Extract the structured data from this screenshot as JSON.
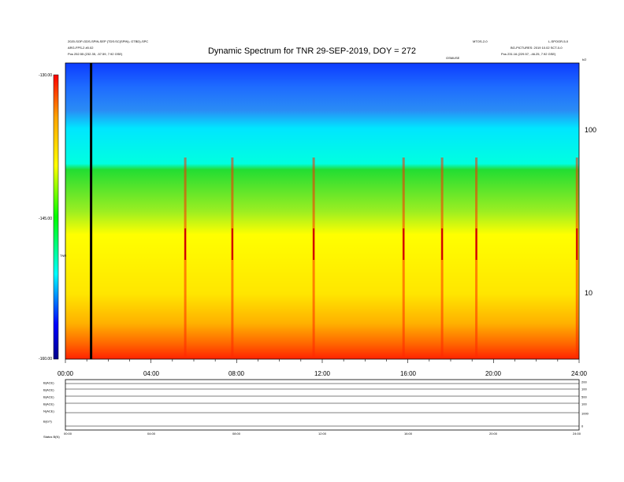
{
  "chart_data": {
    "type": "heatmap",
    "title": "Dynamic Spectrum for TNR 29-SEP-2019, DOY = 272",
    "x_ticks": [
      "00:00",
      "04:00",
      "08:00",
      "12:00",
      "16:00",
      "20:00",
      "24:00"
    ],
    "x_range_hours": [
      0,
      24
    ],
    "y_ticks_right": [
      "100",
      "10"
    ],
    "y_scale": "log",
    "colorbar": {
      "ticks": [
        "-130.00",
        "-145.00",
        "-160.00"
      ],
      "range": [
        -160,
        -130
      ],
      "colors": [
        "#00008b",
        "#0000ff",
        "#00bfff",
        "#00ffff",
        "#00ff00",
        "#ffff00",
        "#ffa500",
        "#ff0000"
      ],
      "label": "TNR"
    },
    "bands": [
      {
        "top_khz": 200,
        "bottom_khz": 50,
        "level_db": -138
      },
      {
        "top_khz": 50,
        "bottom_khz": 25,
        "level_db": -143
      },
      {
        "top_khz": 25,
        "bottom_khz": 8,
        "level_db": -148
      },
      {
        "top_khz": 8,
        "bottom_khz": 5,
        "level_db": -154
      }
    ],
    "bursts_hours": [
      5.6,
      7.8,
      11.6,
      15.8,
      17.6,
      19.2,
      23.9
    ],
    "marker_hour": 1.2,
    "header_left": [
      "2020-SOP-GDS-SPIN-SEP (TDS:SC(SPIN)- GTBD)-SPC",
      "ARG-FPS-2 #0.02",
      "Pos   252.55 (232.35, -57.59, 7.92 GSE)"
    ],
    "header_right_1": "MTOS-2-0",
    "header_right_2": "L-SPOGR-5-0",
    "header_right_3": "BG-PICTURES: 2019 10.02 SCT-0-0",
    "header_right_4": "Pos   231.16 (229.57, -46.25, 7.92 GSE)",
    "burst_tag": "GSMUSE",
    "panel_labels": [
      "B(ACE)",
      "B(ACE)",
      "B(ACE)",
      "B(ACE)",
      "N(ACE)",
      "B(GT)"
    ],
    "panel_right_ticks": [
      "200",
      "100",
      "500",
      "100",
      "1000",
      "0"
    ],
    "bottom_x_ticks": [
      "00:00",
      "04:00",
      "08:00",
      "12:00",
      "16:00",
      "20:00",
      "24:00"
    ],
    "footnote": "Status  B(N)",
    "right_edge_tag": "k/2"
  }
}
